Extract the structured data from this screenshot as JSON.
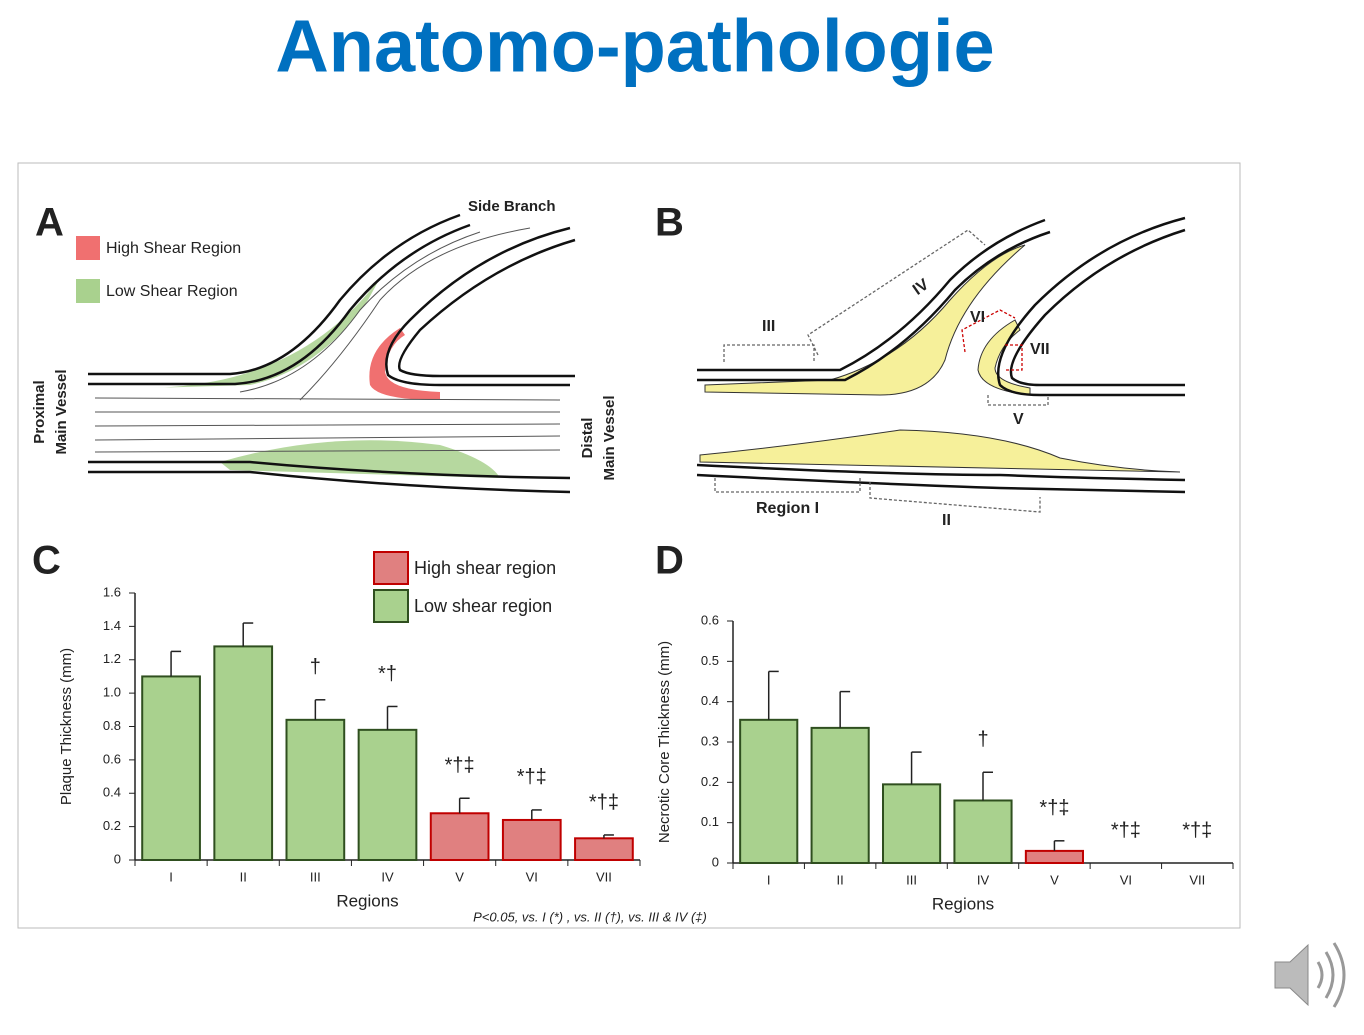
{
  "title": "Anatomo-pathologie",
  "panels": {
    "a": {
      "letter": "A",
      "legend": [
        "High Shear Region",
        "Low Shear Region"
      ],
      "side_branch": "Side Branch",
      "proximal": [
        "Proximal",
        "Main Vessel"
      ],
      "distal": [
        "Distal",
        "Main Vessel"
      ]
    },
    "b": {
      "letter": "B",
      "regions": [
        "Region I",
        "II",
        "III",
        "IV",
        "V",
        "VI",
        "VII"
      ]
    },
    "c": {
      "letter": "C"
    },
    "d": {
      "letter": "D"
    }
  },
  "footnote": "P<0.05, vs. I (*) , vs. II (†), vs. III & IV (‡)",
  "chart_data": [
    {
      "type": "bar",
      "ylabel": "Plaque Thickness (mm)",
      "xlabel": "Regions",
      "categories": [
        "I",
        "II",
        "III",
        "IV",
        "V",
        "VI",
        "VII"
      ],
      "series": [
        {
          "name": "High shear region",
          "color": "#e08080",
          "edgecolor": "#c00000",
          "values": [
            null,
            null,
            null,
            null,
            0.28,
            0.24,
            0.13
          ],
          "errors": [
            null,
            null,
            null,
            null,
            0.09,
            0.06,
            0.02
          ]
        },
        {
          "name": "Low shear region",
          "color": "#a9d18e",
          "edgecolor": "#2f4f1f",
          "values": [
            1.1,
            1.28,
            0.84,
            0.78,
            null,
            null,
            null
          ],
          "errors": [
            0.15,
            0.14,
            0.12,
            0.14,
            null,
            null,
            null
          ]
        }
      ],
      "annotations": [
        null,
        null,
        "†",
        "*†",
        "*†‡",
        "*†‡",
        "*†‡"
      ],
      "ylim": [
        0,
        1.6
      ],
      "yticks": [
        0,
        0.2,
        0.4,
        0.6,
        0.8,
        {
          "value": 1,
          "label": "1.0"
        },
        1.2,
        1.4,
        1.6
      ],
      "legend": "top"
    },
    {
      "type": "bar",
      "ylabel": "Necrotic Core Thickness (mm)",
      "xlabel": "Regions",
      "categories": [
        "I",
        "II",
        "III",
        "IV",
        "V",
        "VI",
        "VII"
      ],
      "series": [
        {
          "color": "#e08080",
          "edgecolor": "#c00000",
          "values": [
            null,
            null,
            null,
            null,
            0.03,
            0,
            0
          ],
          "errors": [
            null,
            null,
            null,
            null,
            0.025,
            null,
            null
          ]
        },
        {
          "color": "#a9d18e",
          "edgecolor": "#2f4f1f",
          "values": [
            0.355,
            0.335,
            0.195,
            0.155,
            null,
            null,
            null
          ],
          "errors": [
            0.12,
            0.09,
            0.08,
            0.07,
            null,
            null,
            null
          ]
        }
      ],
      "annotations": [
        null,
        null,
        null,
        "†",
        "*†‡",
        "*†‡",
        "*†‡"
      ],
      "ylim": [
        0,
        0.6
      ],
      "yticks": [
        0,
        0.1,
        0.2,
        0.3,
        0.4,
        0.5,
        0.6
      ]
    }
  ]
}
